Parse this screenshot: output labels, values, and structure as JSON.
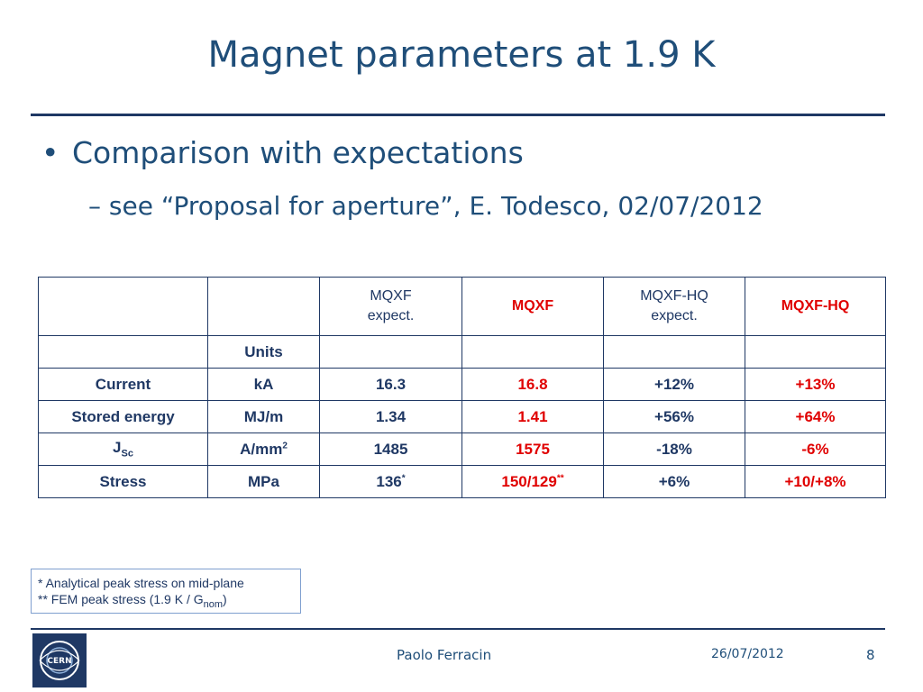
{
  "slide": {
    "title": "Magnet parameters at 1.9 K",
    "bullet1": "Comparison with expectations",
    "bullet1_marker": "•",
    "bullet2": "– see “Proposal for aperture”, E. Todesco, 02/07/2012"
  },
  "table": {
    "header": {
      "mqxf_expect_line1": "MQXF",
      "mqxf_expect_line2": "expect.",
      "mqxf": "MQXF",
      "mqxf_hq_expect_line1": "MQXF-HQ",
      "mqxf_hq_expect_line2": "expect.",
      "mqxf_hq": "MQXF-HQ"
    },
    "units_label": "Units",
    "rows": [
      {
        "label": "Current",
        "unit": "kA",
        "mqxf_expect": "16.3",
        "mqxf": "16.8",
        "hq_expect": "+12%",
        "hq": "+13%"
      },
      {
        "label": "Stored energy",
        "unit": "MJ/m",
        "mqxf_expect": "1.34",
        "mqxf": "1.41",
        "hq_expect": "+56%",
        "hq": "+64%"
      },
      {
        "label": "J",
        "label_sub": "Sc",
        "unit": "A/mm",
        "unit_sup": "2",
        "mqxf_expect": "1485",
        "mqxf": "1575",
        "hq_expect": "-18%",
        "hq": "-6%"
      },
      {
        "label": "Stress",
        "unit": "MPa",
        "mqxf_expect": "136",
        "mqxf_expect_sup": "*",
        "mqxf": "150/129",
        "mqxf_sup": "**",
        "hq_expect": "+6%",
        "hq": "+10/+8%"
      }
    ]
  },
  "footnotes": {
    "line1": "* Analytical peak stress on mid-plane",
    "line2_a": "** FEM peak stress (1.9 K / G",
    "line2_sub": "nom",
    "line2_b": ")"
  },
  "footer": {
    "logo_text": "CERN",
    "author": "Paolo Ferracin",
    "date": "26/07/2012",
    "page": "8"
  },
  "colors": {
    "title": "#1f4e79",
    "highlight": "#e00000",
    "rule": "#1f3864"
  }
}
